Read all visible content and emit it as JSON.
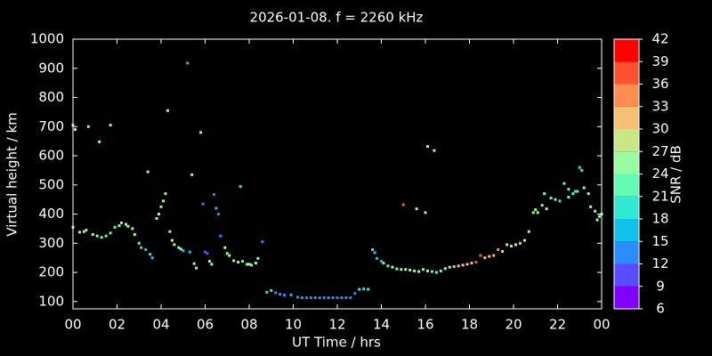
{
  "chart_data": {
    "type": "scatter",
    "title": "2026-01-08. f = 2260 kHz",
    "xlabel": "UT Time / hrs",
    "ylabel": "Virtual height / km",
    "xlim": [
      0,
      24
    ],
    "xticks": [
      {
        "value": 0,
        "label": "00"
      },
      {
        "value": 2,
        "label": "02"
      },
      {
        "value": 4,
        "label": "04"
      },
      {
        "value": 6,
        "label": "06"
      },
      {
        "value": 8,
        "label": "08"
      },
      10,
      12,
      14,
      16,
      18,
      20,
      22,
      {
        "value": 24,
        "label": "00"
      }
    ],
    "ylim": [
      75,
      1000
    ],
    "yticks": [
      100,
      200,
      300,
      400,
      500,
      600,
      700,
      800,
      900,
      1000
    ],
    "colorbar": {
      "label": "SNR / dB",
      "ticks": [
        6,
        9,
        12,
        15,
        18,
        21,
        24,
        27,
        30,
        33,
        36,
        39,
        42
      ],
      "colors": [
        "#8000ff",
        "#5a4cff",
        "#2a8cff",
        "#12c0e8",
        "#30e8d4",
        "#62fcb4",
        "#98fca0",
        "#c8e888",
        "#f6c074",
        "#ff8c50",
        "#ff5030",
        "#ff0000"
      ]
    },
    "x": [
      0,
      0.1,
      0.7,
      1.2,
      1.7,
      0,
      0.3,
      0.5,
      0.6,
      0.9,
      1.1,
      1.3,
      1.5,
      1.7,
      1.9,
      2.1,
      2.2,
      2.4,
      2.5,
      2.7,
      2.8,
      3.0,
      3.1,
      3.3,
      3.5,
      3.6,
      3.4,
      3.8,
      3.9,
      4.0,
      4.1,
      4.2,
      4.3,
      4.4,
      4.5,
      4.6,
      4.8,
      4.9,
      5.0,
      5.2,
      5.3,
      5.4,
      5.5,
      5.6,
      5.8,
      5.9,
      6.0,
      6.1,
      6.2,
      6.3,
      6.4,
      6.5,
      6.6,
      6.7,
      6.9,
      7.0,
      7.1,
      7.3,
      7.5,
      7.6,
      7.7,
      7.9,
      8.0,
      8.1,
      8.3,
      8.4,
      8.6,
      8.8,
      9.0,
      9.2,
      9.4,
      9.6,
      9.9,
      10.2,
      10.4,
      10.6,
      10.8,
      11.0,
      11.2,
      11.4,
      11.6,
      11.8,
      12.0,
      12.2,
      12.4,
      12.6,
      12.8,
      13.0,
      13.2,
      13.4,
      13.6,
      13.7,
      13.8,
      14.0,
      14.1,
      14.3,
      14.5,
      14.7,
      14.9,
      15.1,
      15.3,
      15.5,
      15.7,
      15.9,
      16.1,
      16.3,
      16.5,
      16.7,
      16.9,
      17.1,
      17.3,
      17.5,
      17.7,
      17.9,
      18.1,
      18.3,
      18.5,
      18.7,
      18.9,
      19.1,
      19.3,
      19.5,
      19.7,
      19.9,
      20.1,
      20.3,
      20.5,
      20.7,
      20.9,
      21.0,
      21.1,
      21.3,
      21.5,
      21.7,
      21.9,
      22.1,
      22.3,
      22.5,
      22.7,
      22.9,
      23.0,
      23.1,
      23.2,
      23.4,
      23.5,
      23.7,
      23.9,
      24.0,
      23.8,
      15.0,
      15.6,
      16.0,
      16.1,
      16.4,
      21.4,
      22.5,
      22.8
    ],
    "values": [
      705,
      690,
      700,
      648,
      705,
      355,
      338,
      340,
      345,
      330,
      325,
      320,
      325,
      335,
      355,
      360,
      370,
      365,
      358,
      350,
      330,
      300,
      285,
      278,
      262,
      250,
      545,
      385,
      400,
      425,
      445,
      470,
      755,
      340,
      310,
      295,
      285,
      280,
      275,
      918,
      270,
      535,
      230,
      215,
      680,
      435,
      270,
      265,
      238,
      228,
      467,
      420,
      400,
      325,
      285,
      265,
      258,
      240,
      235,
      495,
      238,
      228,
      228,
      225,
      232,
      248,
      305,
      132,
      138,
      130,
      125,
      122,
      123,
      115,
      113,
      113,
      113,
      113,
      113,
      113,
      113,
      113,
      113,
      113,
      113,
      113,
      128,
      142,
      143,
      142,
      278,
      268,
      248,
      238,
      232,
      222,
      218,
      212,
      210,
      210,
      208,
      205,
      203,
      210,
      205,
      203,
      200,
      205,
      213,
      218,
      220,
      222,
      225,
      228,
      232,
      235,
      258,
      250,
      255,
      258,
      278,
      272,
      295,
      290,
      295,
      300,
      310,
      340,
      405,
      415,
      405,
      430,
      418,
      455,
      450,
      445,
      505,
      458,
      470,
      478,
      560,
      550,
      490,
      470,
      425,
      410,
      392,
      400,
      380,
      432,
      418,
      405,
      632,
      618,
      470,
      485,
      478
    ],
    "snr": [
      24,
      24,
      24,
      24,
      24,
      24,
      24,
      24,
      21,
      24,
      24,
      21,
      21,
      21,
      21,
      24,
      24,
      24,
      24,
      24,
      24,
      21,
      18,
      15,
      18,
      15,
      24,
      24,
      24,
      24,
      24,
      24,
      24,
      24,
      24,
      27,
      24,
      24,
      15,
      15,
      15,
      24,
      24,
      24,
      24,
      12,
      9,
      9,
      24,
      24,
      12,
      15,
      12,
      12,
      24,
      24,
      24,
      24,
      24,
      18,
      21,
      24,
      24,
      24,
      24,
      24,
      12,
      18,
      18,
      12,
      12,
      12,
      15,
      12,
      12,
      12,
      12,
      12,
      12,
      12,
      12,
      12,
      12,
      12,
      12,
      12,
      12,
      18,
      18,
      18,
      18,
      15,
      15,
      15,
      21,
      21,
      24,
      24,
      24,
      27,
      24,
      24,
      24,
      21,
      24,
      21,
      21,
      21,
      24,
      24,
      30,
      30,
      30,
      30,
      30,
      36,
      36,
      30,
      30,
      30,
      33,
      27,
      27,
      27,
      27,
      30,
      27,
      27,
      24,
      24,
      24,
      24,
      24,
      21,
      21,
      18,
      21,
      21,
      21,
      21,
      18,
      18,
      24,
      24,
      24,
      24,
      24,
      24,
      24,
      36,
      24,
      24,
      24,
      24,
      21,
      21,
      18
    ]
  }
}
